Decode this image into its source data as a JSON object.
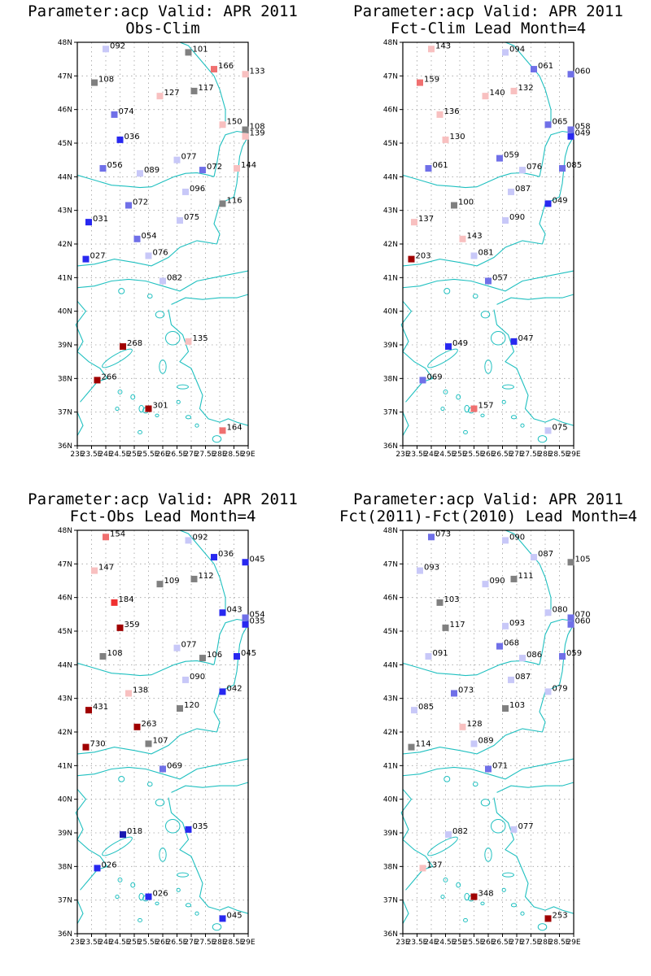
{
  "colors": {
    "coast": "#20c0c0",
    "grid": "#a0a0a0",
    "frame": "#000000",
    "neutral": "#808080",
    "scale": {
      "deep_blue": "#1a1ab0",
      "blue": "#2828f0",
      "mid_blue": "#7070e8",
      "light_blue": "#c8c8f8",
      "light_red": "#f8c0c0",
      "mid_red": "#f07070",
      "red": "#f03030",
      "dark_red": "#a00000"
    }
  },
  "axes": {
    "lat_labels": [
      "48N",
      "47N",
      "46N",
      "45N",
      "44N",
      "43N",
      "42N",
      "41N",
      "40N",
      "39N",
      "38N",
      "37N",
      "36N"
    ],
    "lon_labels": [
      "23E",
      "23.5E",
      "24E",
      "24.5E",
      "25E",
      "25.5E",
      "26E",
      "26.5E",
      "27E",
      "27.5E",
      "28E",
      "28.5E",
      "29E"
    ],
    "lon_range": [
      23,
      29
    ],
    "lat_range": [
      36,
      48
    ],
    "grid": true
  },
  "panels": [
    {
      "title_line1": "Parameter:acp Valid: APR 2011",
      "title_line2": "Obs-Clim",
      "stations": [
        {
          "lon": 24.0,
          "lat": 47.8,
          "label": "092",
          "color": "light_blue"
        },
        {
          "lon": 26.9,
          "lat": 47.7,
          "label": "101",
          "color": "neutral"
        },
        {
          "lon": 27.8,
          "lat": 47.2,
          "label": "166",
          "color": "mid_red"
        },
        {
          "lon": 28.9,
          "lat": 47.05,
          "label": "133",
          "color": "light_red"
        },
        {
          "lon": 23.6,
          "lat": 46.8,
          "label": "108",
          "color": "neutral"
        },
        {
          "lon": 27.1,
          "lat": 46.55,
          "label": "117",
          "color": "neutral"
        },
        {
          "lon": 25.9,
          "lat": 46.4,
          "label": "127",
          "color": "light_red"
        },
        {
          "lon": 24.3,
          "lat": 45.85,
          "label": "074",
          "color": "mid_blue"
        },
        {
          "lon": 28.1,
          "lat": 45.55,
          "label": "150",
          "color": "light_red"
        },
        {
          "lon": 28.9,
          "lat": 45.4,
          "label": "108",
          "color": "neutral"
        },
        {
          "lon": 28.9,
          "lat": 45.2,
          "label": "139",
          "color": "light_red"
        },
        {
          "lon": 24.5,
          "lat": 45.1,
          "label": "036",
          "color": "blue"
        },
        {
          "lon": 26.5,
          "lat": 44.5,
          "label": "077",
          "color": "light_blue"
        },
        {
          "lon": 23.9,
          "lat": 44.25,
          "label": "056",
          "color": "mid_blue"
        },
        {
          "lon": 27.4,
          "lat": 44.2,
          "label": "072",
          "color": "mid_blue"
        },
        {
          "lon": 25.2,
          "lat": 44.1,
          "label": "089",
          "color": "light_blue"
        },
        {
          "lon": 28.6,
          "lat": 44.25,
          "label": "144",
          "color": "light_red"
        },
        {
          "lon": 26.8,
          "lat": 43.55,
          "label": "096",
          "color": "light_blue"
        },
        {
          "lon": 28.1,
          "lat": 43.2,
          "label": "116",
          "color": "neutral"
        },
        {
          "lon": 24.8,
          "lat": 43.15,
          "label": "072",
          "color": "mid_blue"
        },
        {
          "lon": 23.4,
          "lat": 42.65,
          "label": "031",
          "color": "blue"
        },
        {
          "lon": 26.6,
          "lat": 42.7,
          "label": "075",
          "color": "light_blue"
        },
        {
          "lon": 25.1,
          "lat": 42.15,
          "label": "054",
          "color": "mid_blue"
        },
        {
          "lon": 25.5,
          "lat": 41.65,
          "label": "076",
          "color": "light_blue"
        },
        {
          "lon": 23.3,
          "lat": 41.55,
          "label": "027",
          "color": "blue"
        },
        {
          "lon": 26.0,
          "lat": 40.9,
          "label": "082",
          "color": "light_blue"
        },
        {
          "lon": 26.9,
          "lat": 39.1,
          "label": "135",
          "color": "light_red"
        },
        {
          "lon": 24.6,
          "lat": 38.95,
          "label": "268",
          "color": "dark_red"
        },
        {
          "lon": 23.7,
          "lat": 37.95,
          "label": "266",
          "color": "dark_red"
        },
        {
          "lon": 25.5,
          "lat": 37.1,
          "label": "301",
          "color": "dark_red"
        },
        {
          "lon": 28.1,
          "lat": 36.45,
          "label": "164",
          "color": "mid_red"
        }
      ]
    },
    {
      "title_line1": "Parameter:acp Valid: APR 2011",
      "title_line2": "Fct-Clim Lead Month=4",
      "stations": [
        {
          "lon": 24.0,
          "lat": 47.8,
          "label": "143",
          "color": "light_red"
        },
        {
          "lon": 26.6,
          "lat": 47.7,
          "label": "094",
          "color": "light_blue"
        },
        {
          "lon": 27.6,
          "lat": 47.2,
          "label": "061",
          "color": "mid_blue"
        },
        {
          "lon": 28.9,
          "lat": 47.05,
          "label": "060",
          "color": "mid_blue"
        },
        {
          "lon": 23.6,
          "lat": 46.8,
          "label": "159",
          "color": "mid_red"
        },
        {
          "lon": 26.9,
          "lat": 46.55,
          "label": "132",
          "color": "light_red"
        },
        {
          "lon": 25.9,
          "lat": 46.4,
          "label": "140",
          "color": "light_red"
        },
        {
          "lon": 24.3,
          "lat": 45.85,
          "label": "136",
          "color": "light_red"
        },
        {
          "lon": 28.1,
          "lat": 45.55,
          "label": "065",
          "color": "mid_blue"
        },
        {
          "lon": 28.9,
          "lat": 45.4,
          "label": "058",
          "color": "mid_blue"
        },
        {
          "lon": 28.9,
          "lat": 45.2,
          "label": "049",
          "color": "blue"
        },
        {
          "lon": 24.5,
          "lat": 45.1,
          "label": "130",
          "color": "light_red"
        },
        {
          "lon": 26.4,
          "lat": 44.55,
          "label": "059",
          "color": "mid_blue"
        },
        {
          "lon": 23.9,
          "lat": 44.25,
          "label": "061",
          "color": "mid_blue"
        },
        {
          "lon": 27.2,
          "lat": 44.2,
          "label": "076",
          "color": "light_blue"
        },
        {
          "lon": 28.6,
          "lat": 44.25,
          "label": "085",
          "color": "mid_blue"
        },
        {
          "lon": 26.8,
          "lat": 43.55,
          "label": "087",
          "color": "light_blue"
        },
        {
          "lon": 28.1,
          "lat": 43.2,
          "label": "049",
          "color": "blue"
        },
        {
          "lon": 24.8,
          "lat": 43.15,
          "label": "100",
          "color": "neutral"
        },
        {
          "lon": 23.4,
          "lat": 42.65,
          "label": "137",
          "color": "light_red"
        },
        {
          "lon": 26.6,
          "lat": 42.7,
          "label": "090",
          "color": "light_blue"
        },
        {
          "lon": 25.1,
          "lat": 42.15,
          "label": "143",
          "color": "light_red"
        },
        {
          "lon": 25.5,
          "lat": 41.65,
          "label": "081",
          "color": "light_blue"
        },
        {
          "lon": 23.3,
          "lat": 41.55,
          "label": "203",
          "color": "dark_red"
        },
        {
          "lon": 26.0,
          "lat": 40.9,
          "label": "057",
          "color": "mid_blue"
        },
        {
          "lon": 26.9,
          "lat": 39.1,
          "label": "047",
          "color": "blue"
        },
        {
          "lon": 24.6,
          "lat": 38.95,
          "label": "049",
          "color": "blue"
        },
        {
          "lon": 23.7,
          "lat": 37.95,
          "label": "069",
          "color": "mid_blue"
        },
        {
          "lon": 25.5,
          "lat": 37.1,
          "label": "157",
          "color": "mid_red"
        },
        {
          "lon": 28.1,
          "lat": 36.45,
          "label": "075",
          "color": "light_blue"
        }
      ]
    },
    {
      "title_line1": "Parameter:acp Valid: APR 2011",
      "title_line2": "Fct-Obs Lead Month=4",
      "stations": [
        {
          "lon": 24.0,
          "lat": 47.8,
          "label": "154",
          "color": "mid_red"
        },
        {
          "lon": 26.9,
          "lat": 47.7,
          "label": "092",
          "color": "light_blue"
        },
        {
          "lon": 27.8,
          "lat": 47.2,
          "label": "036",
          "color": "blue"
        },
        {
          "lon": 28.9,
          "lat": 47.05,
          "label": "045",
          "color": "blue"
        },
        {
          "lon": 23.6,
          "lat": 46.8,
          "label": "147",
          "color": "light_red"
        },
        {
          "lon": 27.1,
          "lat": 46.55,
          "label": "112",
          "color": "neutral"
        },
        {
          "lon": 25.9,
          "lat": 46.4,
          "label": "109",
          "color": "neutral"
        },
        {
          "lon": 24.3,
          "lat": 45.85,
          "label": "184",
          "color": "red"
        },
        {
          "lon": 28.1,
          "lat": 45.55,
          "label": "043",
          "color": "blue"
        },
        {
          "lon": 28.9,
          "lat": 45.4,
          "label": "054",
          "color": "mid_blue"
        },
        {
          "lon": 28.9,
          "lat": 45.2,
          "label": "035",
          "color": "blue"
        },
        {
          "lon": 24.5,
          "lat": 45.1,
          "label": "359",
          "color": "dark_red"
        },
        {
          "lon": 26.5,
          "lat": 44.5,
          "label": "077",
          "color": "light_blue"
        },
        {
          "lon": 23.9,
          "lat": 44.25,
          "label": "108",
          "color": "neutral"
        },
        {
          "lon": 27.4,
          "lat": 44.2,
          "label": "106",
          "color": "neutral"
        },
        {
          "lon": 28.6,
          "lat": 44.25,
          "label": "045",
          "color": "blue"
        },
        {
          "lon": 26.8,
          "lat": 43.55,
          "label": "090",
          "color": "light_blue"
        },
        {
          "lon": 28.1,
          "lat": 43.2,
          "label": "042",
          "color": "blue"
        },
        {
          "lon": 24.8,
          "lat": 43.15,
          "label": "138",
          "color": "light_red"
        },
        {
          "lon": 23.4,
          "lat": 42.65,
          "label": "431",
          "color": "dark_red"
        },
        {
          "lon": 26.6,
          "lat": 42.7,
          "label": "120",
          "color": "neutral"
        },
        {
          "lon": 25.1,
          "lat": 42.15,
          "label": "263",
          "color": "dark_red"
        },
        {
          "lon": 25.5,
          "lat": 41.65,
          "label": "107",
          "color": "neutral"
        },
        {
          "lon": 23.3,
          "lat": 41.55,
          "label": "730",
          "color": "dark_red"
        },
        {
          "lon": 26.0,
          "lat": 40.9,
          "label": "069",
          "color": "mid_blue"
        },
        {
          "lon": 26.9,
          "lat": 39.1,
          "label": "035",
          "color": "blue"
        },
        {
          "lon": 24.6,
          "lat": 38.95,
          "label": "018",
          "color": "deep_blue"
        },
        {
          "lon": 23.7,
          "lat": 37.95,
          "label": "026",
          "color": "blue"
        },
        {
          "lon": 25.5,
          "lat": 37.1,
          "label": "026",
          "color": "blue"
        },
        {
          "lon": 28.1,
          "lat": 36.45,
          "label": "045",
          "color": "blue"
        }
      ]
    },
    {
      "title_line1": "Parameter:acp Valid: APR 2011",
      "title_line2": "Fct(2011)-Fct(2010) Lead Month=4",
      "stations": [
        {
          "lon": 24.0,
          "lat": 47.8,
          "label": "073",
          "color": "mid_blue"
        },
        {
          "lon": 26.6,
          "lat": 47.7,
          "label": "090",
          "color": "light_blue"
        },
        {
          "lon": 27.6,
          "lat": 47.2,
          "label": "087",
          "color": "light_blue"
        },
        {
          "lon": 28.9,
          "lat": 47.05,
          "label": "105",
          "color": "neutral"
        },
        {
          "lon": 23.6,
          "lat": 46.8,
          "label": "093",
          "color": "light_blue"
        },
        {
          "lon": 26.9,
          "lat": 46.55,
          "label": "111",
          "color": "neutral"
        },
        {
          "lon": 25.9,
          "lat": 46.4,
          "label": "090",
          "color": "light_blue"
        },
        {
          "lon": 24.3,
          "lat": 45.85,
          "label": "103",
          "color": "neutral"
        },
        {
          "lon": 28.1,
          "lat": 45.55,
          "label": "080",
          "color": "light_blue"
        },
        {
          "lon": 28.9,
          "lat": 45.4,
          "label": "070",
          "color": "mid_blue"
        },
        {
          "lon": 28.9,
          "lat": 45.2,
          "label": "060",
          "color": "mid_blue"
        },
        {
          "lon": 24.5,
          "lat": 45.1,
          "label": "117",
          "color": "neutral"
        },
        {
          "lon": 26.4,
          "lat": 44.55,
          "label": "068",
          "color": "mid_blue"
        },
        {
          "lon": 26.6,
          "lat": 45.15,
          "label": "093",
          "color": "light_blue"
        },
        {
          "lon": 23.9,
          "lat": 44.25,
          "label": "091",
          "color": "light_blue"
        },
        {
          "lon": 27.2,
          "lat": 44.2,
          "label": "086",
          "color": "light_blue"
        },
        {
          "lon": 28.6,
          "lat": 44.25,
          "label": "059",
          "color": "mid_blue"
        },
        {
          "lon": 26.8,
          "lat": 43.55,
          "label": "087",
          "color": "light_blue"
        },
        {
          "lon": 28.1,
          "lat": 43.2,
          "label": "079",
          "color": "light_blue"
        },
        {
          "lon": 24.8,
          "lat": 43.15,
          "label": "073",
          "color": "mid_blue"
        },
        {
          "lon": 23.4,
          "lat": 42.65,
          "label": "085",
          "color": "light_blue"
        },
        {
          "lon": 26.6,
          "lat": 42.7,
          "label": "103",
          "color": "neutral"
        },
        {
          "lon": 25.1,
          "lat": 42.15,
          "label": "128",
          "color": "light_red"
        },
        {
          "lon": 25.5,
          "lat": 41.65,
          "label": "089",
          "color": "light_blue"
        },
        {
          "lon": 23.3,
          "lat": 41.55,
          "label": "114",
          "color": "neutral"
        },
        {
          "lon": 26.0,
          "lat": 40.9,
          "label": "071",
          "color": "mid_blue"
        },
        {
          "lon": 26.9,
          "lat": 39.1,
          "label": "077",
          "color": "light_blue"
        },
        {
          "lon": 24.6,
          "lat": 38.95,
          "label": "082",
          "color": "light_blue"
        },
        {
          "lon": 23.7,
          "lat": 37.95,
          "label": "137",
          "color": "light_red"
        },
        {
          "lon": 25.5,
          "lat": 37.1,
          "label": "348",
          "color": "dark_red"
        },
        {
          "lon": 28.1,
          "lat": 36.45,
          "label": "253",
          "color": "dark_red"
        }
      ]
    }
  ]
}
